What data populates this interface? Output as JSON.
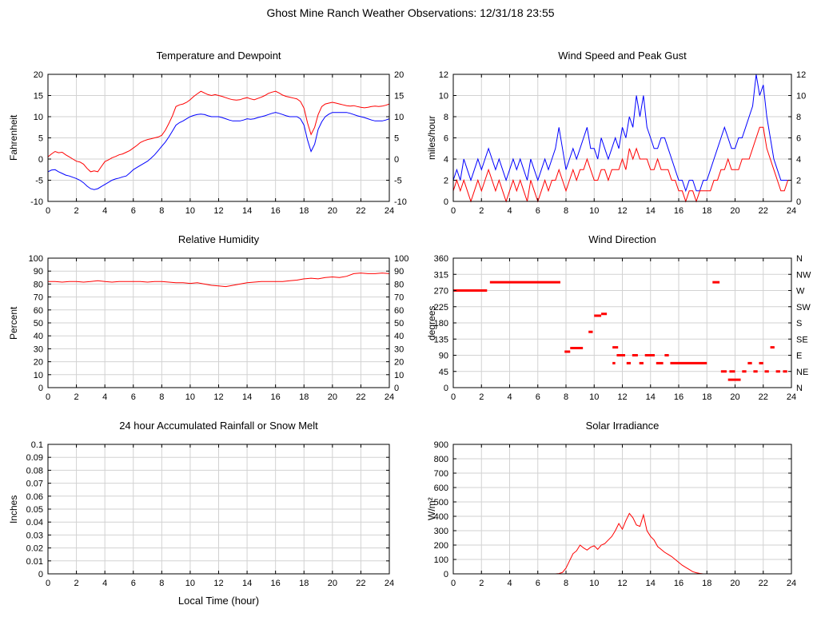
{
  "page_title": "Ghost Mine Ranch Weather Observations: 12/31/18 23:55",
  "chart_data": [
    {
      "type": "line",
      "title": "Temperature and Dewpoint",
      "ylabel": "Fahrenheit",
      "xlabel": "",
      "xlim": [
        0,
        24
      ],
      "ylim": [
        -10,
        20
      ],
      "xticks": [
        0,
        2,
        4,
        6,
        8,
        10,
        12,
        14,
        16,
        18,
        20,
        22,
        24
      ],
      "yticks": [
        -10,
        -5,
        0,
        5,
        10,
        15,
        20
      ],
      "ytick_labels": [
        "-10",
        "-5",
        "0",
        "5",
        "10",
        "15",
        "20"
      ],
      "right_labels": [
        "-10",
        "-5",
        "0",
        "5",
        "10",
        "15",
        "20"
      ],
      "grid": true,
      "series": [
        {
          "name": "temperature",
          "color": "#ff0000",
          "x0": 0,
          "dx": 0.25,
          "values": [
            0.5,
            1.2,
            1.8,
            1.5,
            1.6,
            1.0,
            0.5,
            0.0,
            -0.5,
            -0.7,
            -1.2,
            -2.2,
            -3.0,
            -2.8,
            -3.0,
            -1.8,
            -0.6,
            -0.2,
            0.3,
            0.6,
            1.0,
            1.2,
            1.6,
            2.0,
            2.6,
            3.2,
            3.9,
            4.3,
            4.6,
            4.8,
            5.0,
            5.2,
            5.6,
            6.8,
            8.4,
            10.2,
            12.4,
            12.8,
            13.0,
            13.4,
            14.0,
            14.8,
            15.4,
            16.0,
            15.6,
            15.2,
            15.0,
            15.2,
            15.0,
            14.8,
            14.5,
            14.2,
            14.0,
            13.9,
            14.0,
            14.3,
            14.5,
            14.2,
            14.0,
            14.3,
            14.6,
            15.0,
            15.5,
            15.8,
            16.0,
            15.6,
            15.1,
            14.8,
            14.6,
            14.4,
            14.2,
            13.6,
            12.0,
            8.5,
            5.8,
            7.5,
            10.5,
            12.4,
            13.0,
            13.2,
            13.4,
            13.2,
            13.0,
            12.8,
            12.6,
            12.5,
            12.6,
            12.4,
            12.2,
            12.1,
            12.2,
            12.4,
            12.5,
            12.4,
            12.5,
            12.7,
            13.0
          ]
        },
        {
          "name": "dewpoint",
          "color": "#0000ff",
          "x0": 0,
          "dx": 0.25,
          "values": [
            -3.0,
            -2.6,
            -2.5,
            -3.0,
            -3.4,
            -3.8,
            -4.0,
            -4.3,
            -4.6,
            -5.0,
            -5.6,
            -6.4,
            -7.0,
            -7.2,
            -7.0,
            -6.5,
            -6.0,
            -5.5,
            -5.0,
            -4.7,
            -4.5,
            -4.2,
            -4.0,
            -3.3,
            -2.5,
            -2.0,
            -1.5,
            -1.0,
            -0.5,
            0.2,
            1.0,
            2.0,
            3.0,
            4.0,
            5.2,
            6.6,
            8.0,
            8.6,
            9.0,
            9.5,
            10.0,
            10.3,
            10.5,
            10.6,
            10.5,
            10.2,
            10.0,
            10.0,
            10.0,
            9.8,
            9.5,
            9.2,
            9.0,
            9.0,
            9.0,
            9.2,
            9.5,
            9.4,
            9.5,
            9.8,
            10.0,
            10.2,
            10.5,
            10.8,
            11.0,
            10.8,
            10.5,
            10.2,
            10.0,
            10.0,
            10.0,
            9.5,
            8.0,
            4.5,
            1.8,
            3.5,
            7.0,
            8.8,
            10.0,
            10.6,
            11.0,
            11.0,
            11.0,
            11.0,
            11.0,
            10.8,
            10.5,
            10.2,
            10.0,
            9.8,
            9.5,
            9.2,
            9.0,
            9.0,
            9.0,
            9.2,
            9.5
          ]
        }
      ]
    },
    {
      "type": "line",
      "title": "Wind Speed and Peak Gust",
      "ylabel": "miles/hour",
      "xlabel": "",
      "xlim": [
        0,
        24
      ],
      "ylim": [
        0,
        12
      ],
      "xticks": [
        0,
        2,
        4,
        6,
        8,
        10,
        12,
        14,
        16,
        18,
        20,
        22,
        24
      ],
      "yticks": [
        0,
        2,
        4,
        6,
        8,
        10,
        12
      ],
      "ytick_labels": [
        "0",
        "2",
        "4",
        "6",
        "8",
        "10",
        "12"
      ],
      "right_labels": [
        "0",
        "2",
        "4",
        "6",
        "8",
        "10",
        "12"
      ],
      "grid": true,
      "series": [
        {
          "name": "peak-gust",
          "color": "#0000ff",
          "x0": 0,
          "dx": 0.25,
          "values": [
            2,
            3,
            2,
            4,
            3,
            2,
            3,
            4,
            3,
            4,
            5,
            4,
            3,
            4,
            3,
            2,
            3,
            4,
            3,
            4,
            3,
            2,
            4,
            3,
            2,
            3,
            4,
            3,
            4,
            5,
            7,
            5,
            3,
            4,
            5,
            4,
            5,
            6,
            7,
            5,
            5,
            4,
            6,
            5,
            4,
            5,
            6,
            5,
            7,
            6,
            8,
            7,
            10,
            8,
            10,
            7,
            6,
            5,
            5,
            6,
            6,
            5,
            4,
            3,
            2,
            2,
            1,
            2,
            2,
            1,
            1,
            2,
            2,
            3,
            4,
            5,
            6,
            7,
            6,
            5,
            5,
            6,
            6,
            7,
            8,
            9,
            12,
            10,
            11,
            8,
            6,
            4,
            3,
            2,
            2,
            2,
            2
          ]
        },
        {
          "name": "wind-speed",
          "color": "#ff0000",
          "x0": 0,
          "dx": 0.25,
          "values": [
            1,
            2,
            1,
            2,
            1,
            0,
            1,
            2,
            1,
            2,
            3,
            2,
            1,
            2,
            1,
            0,
            1,
            2,
            1,
            2,
            1,
            0,
            2,
            1,
            0,
            1,
            2,
            1,
            2,
            2,
            3,
            2,
            1,
            2,
            3,
            2,
            3,
            3,
            4,
            3,
            2,
            2,
            3,
            3,
            2,
            3,
            3,
            3,
            4,
            3,
            5,
            4,
            5,
            4,
            4,
            4,
            3,
            3,
            4,
            3,
            3,
            3,
            2,
            2,
            1,
            1,
            0,
            1,
            1,
            0,
            1,
            1,
            1,
            1,
            2,
            2,
            3,
            3,
            4,
            3,
            3,
            3,
            4,
            4,
            4,
            5,
            6,
            7,
            7,
            5,
            4,
            3,
            2,
            1,
            1,
            2,
            2
          ]
        }
      ]
    },
    {
      "type": "line",
      "title": "Relative Humidity",
      "ylabel": "Percent",
      "xlabel": "",
      "xlim": [
        0,
        24
      ],
      "ylim": [
        0,
        100
      ],
      "xticks": [
        0,
        2,
        4,
        6,
        8,
        10,
        12,
        14,
        16,
        18,
        20,
        22,
        24
      ],
      "yticks": [
        0,
        10,
        20,
        30,
        40,
        50,
        60,
        70,
        80,
        90,
        100
      ],
      "ytick_labels": [
        "0",
        "10",
        "20",
        "30",
        "40",
        "50",
        "60",
        "70",
        "80",
        "90",
        "100"
      ],
      "right_labels": [
        "0",
        "10",
        "20",
        "30",
        "40",
        "50",
        "60",
        "70",
        "80",
        "90",
        "100"
      ],
      "grid": true,
      "series": [
        {
          "name": "relative-humidity",
          "color": "#ff0000",
          "x0": 0,
          "dx": 0.5,
          "values": [
            82,
            82,
            81.5,
            82,
            82,
            81.5,
            82,
            82.5,
            82,
            81.5,
            82,
            82,
            82,
            82,
            81.5,
            82,
            82,
            81.5,
            81,
            81,
            80.5,
            81,
            80,
            79,
            78.5,
            78,
            79,
            80,
            81,
            81.5,
            82,
            82,
            82,
            82,
            82.5,
            83,
            84,
            84.5,
            84,
            85,
            85.5,
            85,
            86,
            88,
            88.5,
            88,
            88,
            88.5,
            88
          ]
        }
      ]
    },
    {
      "type": "scatter",
      "title": "Wind Direction",
      "ylabel": "degrees",
      "xlabel": "",
      "xlim": [
        0,
        24
      ],
      "ylim": [
        0,
        360
      ],
      "xticks": [
        0,
        2,
        4,
        6,
        8,
        10,
        12,
        14,
        16,
        18,
        20,
        22,
        24
      ],
      "yticks": [
        0,
        45,
        90,
        135,
        180,
        225,
        270,
        315,
        360
      ],
      "ytick_labels": [
        "0",
        "45",
        "90",
        "135",
        "180",
        "225",
        "270",
        "315",
        "360"
      ],
      "right_labels": [
        "N",
        "NE",
        "E",
        "SE",
        "S",
        "SW",
        "W",
        "NW",
        "N"
      ],
      "grid": true,
      "series": [
        {
          "name": "wind-direction",
          "color": "#ff0000",
          "segments": [
            [
              0,
              2.4,
              270
            ],
            [
              2.6,
              7.6,
              293
            ],
            [
              7.9,
              8.3,
              100
            ],
            [
              8.3,
              9.2,
              110
            ],
            [
              9.6,
              9.9,
              155
            ],
            [
              10.0,
              10.5,
              200
            ],
            [
              10.5,
              10.9,
              205
            ],
            [
              11.3,
              11.7,
              112
            ],
            [
              11.3,
              11.5,
              68
            ],
            [
              11.6,
              12.2,
              90
            ],
            [
              12.3,
              12.6,
              68
            ],
            [
              12.7,
              13.1,
              90
            ],
            [
              13.2,
              13.5,
              68
            ],
            [
              13.6,
              14.3,
              90
            ],
            [
              14.4,
              14.9,
              68
            ],
            [
              15.0,
              15.3,
              90
            ],
            [
              15.4,
              18.0,
              68
            ],
            [
              18.4,
              18.9,
              293
            ],
            [
              19.0,
              19.4,
              45
            ],
            [
              19.5,
              20.4,
              22
            ],
            [
              19.6,
              20.0,
              45
            ],
            [
              20.5,
              20.8,
              45
            ],
            [
              20.9,
              21.2,
              68
            ],
            [
              21.3,
              21.6,
              45
            ],
            [
              21.7,
              22.0,
              68
            ],
            [
              22.1,
              22.4,
              45
            ],
            [
              22.5,
              22.8,
              112
            ],
            [
              22.9,
              23.2,
              45
            ],
            [
              23.4,
              23.7,
              45
            ]
          ]
        }
      ]
    },
    {
      "type": "line",
      "title": "24 hour Accumulated Rainfall or Snow Melt",
      "ylabel": "Inches",
      "xlabel": "Local Time (hour)",
      "xlim": [
        0,
        24
      ],
      "ylim": [
        0,
        0.1
      ],
      "xticks": [
        0,
        2,
        4,
        6,
        8,
        10,
        12,
        14,
        16,
        18,
        20,
        22,
        24
      ],
      "yticks": [
        0,
        0.01,
        0.02,
        0.03,
        0.04,
        0.05,
        0.06,
        0.07,
        0.08,
        0.09,
        0.1
      ],
      "ytick_labels": [
        "0",
        "0.01",
        "0.02",
        "0.03",
        "0.04",
        "0.05",
        "0.06",
        "0.07",
        "0.08",
        "0.09",
        "0.1"
      ],
      "grid": true,
      "series": [
        {
          "name": "rainfall",
          "color": "#ff0000",
          "x0": 0,
          "dx": 24,
          "values": [
            0,
            0
          ]
        }
      ]
    },
    {
      "type": "line",
      "title": "Solar Irradiance",
      "ylabel": "W/m²",
      "xlabel": "",
      "xlim": [
        0,
        24
      ],
      "ylim": [
        0,
        900
      ],
      "xticks": [
        0,
        2,
        4,
        6,
        8,
        10,
        12,
        14,
        16,
        18,
        20,
        22,
        24
      ],
      "yticks": [
        0,
        100,
        200,
        300,
        400,
        500,
        600,
        700,
        800,
        900
      ],
      "ytick_labels": [
        "0",
        "100",
        "200",
        "300",
        "400",
        "500",
        "600",
        "700",
        "800",
        "900"
      ],
      "grid": true,
      "series": [
        {
          "name": "solar-irradiance",
          "color": "#ff0000",
          "x0": 0,
          "dx": 0.25,
          "values": [
            0,
            0,
            0,
            0,
            0,
            0,
            0,
            0,
            0,
            0,
            0,
            0,
            0,
            0,
            0,
            0,
            0,
            0,
            0,
            0,
            0,
            0,
            0,
            0,
            0,
            0,
            0,
            0,
            0,
            0,
            2,
            10,
            40,
            90,
            140,
            160,
            200,
            180,
            165,
            185,
            195,
            170,
            200,
            210,
            235,
            260,
            300,
            350,
            310,
            370,
            420,
            390,
            340,
            330,
            410,
            300,
            260,
            235,
            190,
            170,
            150,
            135,
            120,
            100,
            80,
            60,
            45,
            30,
            15,
            8,
            3,
            0,
            0,
            0,
            0,
            0,
            0,
            0,
            0,
            0,
            0,
            0,
            0,
            0,
            0,
            0,
            0,
            0,
            0,
            0,
            0,
            0,
            0,
            0,
            0,
            0,
            0
          ]
        }
      ]
    }
  ]
}
